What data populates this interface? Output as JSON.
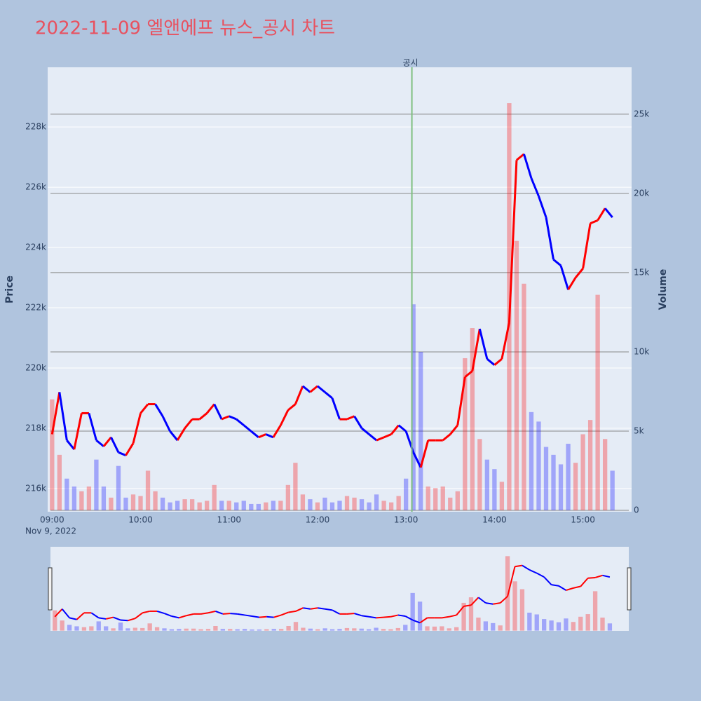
{
  "chart_data": {
    "type": "line",
    "title": "2022-11-09 엘앤에프 뉴스_공시 차트",
    "y_label": "Price",
    "y2_label": "Volume",
    "date_label": "Nov 9, 2022",
    "annotation": {
      "text": "공시",
      "x": "13:04"
    },
    "x": [
      "09:00",
      "09:05",
      "09:10",
      "09:15",
      "09:20",
      "09:25",
      "09:30",
      "09:35",
      "09:40",
      "09:45",
      "09:50",
      "09:55",
      "10:00",
      "10:05",
      "10:10",
      "10:15",
      "10:20",
      "10:25",
      "10:30",
      "10:35",
      "10:40",
      "10:45",
      "10:50",
      "10:55",
      "11:00",
      "11:05",
      "11:10",
      "11:15",
      "11:20",
      "11:25",
      "11:30",
      "11:35",
      "11:40",
      "11:45",
      "11:50",
      "11:55",
      "12:00",
      "12:05",
      "12:10",
      "12:15",
      "12:20",
      "12:25",
      "12:30",
      "12:35",
      "12:40",
      "12:45",
      "12:50",
      "12:55",
      "13:00",
      "13:05",
      "13:10",
      "13:15",
      "13:20",
      "13:25",
      "13:30",
      "13:35",
      "13:40",
      "13:45",
      "13:50",
      "13:55",
      "14:00",
      "14:05",
      "14:10",
      "14:15",
      "14:20",
      "14:25",
      "14:30",
      "14:35",
      "14:40",
      "14:45",
      "14:50",
      "14:55",
      "15:00",
      "15:05",
      "15:10",
      "15:15",
      "15:20"
    ],
    "series": [
      {
        "name": "Price",
        "up_color": "#ff0000",
        "down_color": "#0000ff",
        "values": [
          217800,
          219200,
          217600,
          217300,
          218500,
          218500,
          217600,
          217400,
          217700,
          217200,
          217100,
          217500,
          218500,
          218800,
          218800,
          218400,
          217900,
          217600,
          218000,
          218300,
          218300,
          218500,
          218800,
          218300,
          218400,
          218300,
          218100,
          217900,
          217700,
          217800,
          217700,
          218100,
          218600,
          218800,
          219400,
          219200,
          219400,
          219200,
          219000,
          218300,
          218300,
          218400,
          218000,
          217800,
          217600,
          217700,
          217800,
          218100,
          217900,
          217200,
          216700,
          217600,
          217600,
          217600,
          217800,
          218100,
          219700,
          219900,
          221300,
          220300,
          220100,
          220300,
          221500,
          226900,
          227100,
          226300,
          225700,
          225000,
          223600,
          223400,
          222600,
          223000,
          223300,
          224800,
          224900,
          225300,
          225000
        ]
      },
      {
        "name": "Volume",
        "axis": "y2",
        "opacity": 0.3,
        "values": [
          7000,
          3500,
          2000,
          1500,
          1200,
          1500,
          3200,
          1500,
          800,
          2800,
          800,
          1000,
          900,
          2500,
          1200,
          800,
          500,
          600,
          700,
          700,
          500,
          600,
          1600,
          600,
          600,
          500,
          600,
          400,
          400,
          500,
          600,
          600,
          1600,
          3000,
          1000,
          700,
          500,
          800,
          500,
          600,
          900,
          800,
          700,
          500,
          1000,
          600,
          500,
          900,
          2000,
          13000,
          10000,
          1500,
          1400,
          1500,
          800,
          1200,
          9600,
          11500,
          4500,
          3200,
          2600,
          1800,
          25700,
          17000,
          14300,
          6200,
          5600,
          4000,
          3500,
          2900,
          4200,
          3000,
          4800,
          5700,
          13600,
          4500,
          2500
        ]
      }
    ],
    "xlim": [
      "08:57",
      "15:33"
    ],
    "xticks": [
      "09:00",
      "10:00",
      "11:00",
      "12:00",
      "13:00",
      "14:00",
      "15:00"
    ],
    "ylim": [
      215230,
      229980
    ],
    "yticks": [
      {
        "value": 216000,
        "label": "216k"
      },
      {
        "value": 218000,
        "label": "218k"
      },
      {
        "value": 220000,
        "label": "220k"
      },
      {
        "value": 222000,
        "label": "222k"
      },
      {
        "value": 224000,
        "label": "224k"
      },
      {
        "value": 226000,
        "label": "226k"
      },
      {
        "value": 228000,
        "label": "228k"
      }
    ],
    "y2lim": [
      -90,
      27960
    ],
    "y2ticks": [
      0,
      {
        "value": 5000,
        "label": "5k"
      },
      {
        "value": 10000,
        "label": "10k"
      },
      {
        "value": 15000,
        "label": "15k"
      },
      {
        "value": 20000,
        "label": "20k"
      },
      {
        "value": 25000,
        "label": "25k"
      }
    ],
    "grid": true,
    "plot_color": "#e5ecf6"
  }
}
